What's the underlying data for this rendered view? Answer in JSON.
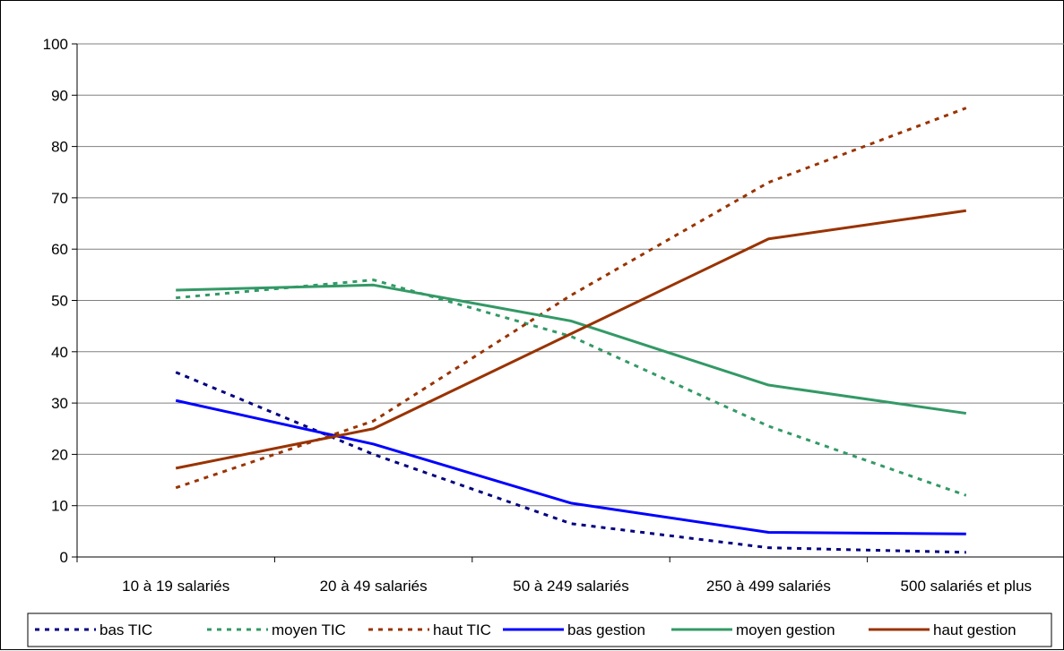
{
  "chart_data": {
    "type": "line",
    "categories": [
      "10 à 19 salariés",
      "20 à 49 salariés",
      "50 à 249 salariés",
      "250 à 499 salariés",
      "500 salariés et plus"
    ],
    "ylim": [
      0,
      100
    ],
    "yticks": [
      "0",
      "10",
      "20",
      "30",
      "40",
      "50",
      "60",
      "70",
      "80",
      "90",
      "100"
    ],
    "grid": true,
    "legend_position": "bottom",
    "series": [
      {
        "name": "bas TIC",
        "color": "#000080",
        "style": "dashed",
        "values": [
          36,
          20,
          6.5,
          1.8,
          0.9
        ]
      },
      {
        "name": "moyen TIC",
        "color": "#339966",
        "style": "dashed",
        "values": [
          50.5,
          54,
          43,
          25.5,
          12
        ]
      },
      {
        "name": "haut TIC",
        "color": "#993300",
        "style": "dashed",
        "values": [
          13.5,
          26.5,
          51,
          73,
          87.5
        ]
      },
      {
        "name": "bas gestion",
        "color": "#0000FF",
        "style": "solid",
        "values": [
          30.5,
          22,
          10.5,
          4.8,
          4.5
        ]
      },
      {
        "name": "moyen gestion",
        "color": "#339966",
        "style": "solid",
        "values": [
          52,
          53,
          46,
          33.5,
          28
        ]
      },
      {
        "name": "haut gestion",
        "color": "#993300",
        "style": "solid",
        "values": [
          17.3,
          25,
          43.5,
          62,
          67.5
        ]
      }
    ]
  }
}
